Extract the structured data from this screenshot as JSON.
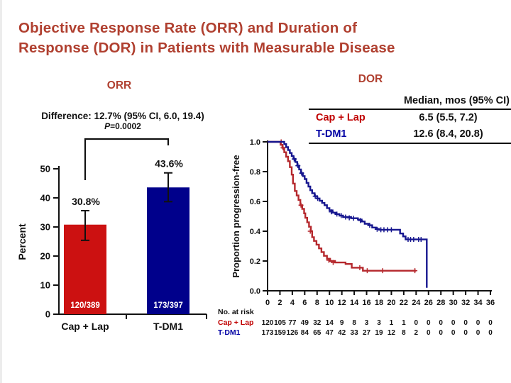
{
  "slide": {
    "title_line1": "Objective Response Rate (ORR) and Duration of",
    "title_line2": "Response (DOR) in Patients with Measurable Disease"
  },
  "colors": {
    "title_red": "#B04030",
    "legend_red": "#C00000",
    "legend_blue": "#0000A4",
    "axis_black": "#111111"
  },
  "orr": {
    "heading": "ORR"
  },
  "dor": {
    "heading": "DOR",
    "legend": {
      "header": "Median, mos (95% CI)",
      "rows": [
        {
          "label": "Cap + Lap",
          "value": "6.5 (5.5, 7.2)"
        },
        {
          "label": "T-DM1",
          "value": "12.6 (8.4, 20.8)"
        }
      ]
    }
  },
  "chart_data": [
    {
      "type": "bar",
      "title": "ORR",
      "categories": [
        "Cap + Lap",
        "T-DM1"
      ],
      "values": [
        30.8,
        43.6
      ],
      "value_labels": [
        "30.8%",
        "43.6%"
      ],
      "bar_inner_labels": [
        "120/389",
        "173/397"
      ],
      "ci": [
        [
          25.4,
          35.6
        ],
        [
          38.7,
          48.6
        ]
      ],
      "colors": [
        "#CC1111",
        "#00008B"
      ],
      "ylabel": "Percent",
      "ylim": [
        0,
        50
      ],
      "yticks": [
        0,
        10,
        20,
        30,
        40,
        50
      ],
      "annotation": {
        "difference": "Difference: 12.7% (95% CI, 6.0, 19.4)",
        "p": "P=0.0002"
      }
    },
    {
      "type": "line",
      "subtype": "kaplan-meier",
      "title": "DOR",
      "ylabel": "Proportion progression-free",
      "ylim": [
        0,
        1
      ],
      "yticks": [
        0.0,
        0.2,
        0.4,
        0.6,
        0.8,
        1.0
      ],
      "xlim": [
        0,
        36
      ],
      "xticks": [
        0,
        2,
        4,
        6,
        8,
        10,
        12,
        14,
        16,
        18,
        20,
        22,
        24,
        26,
        28,
        30,
        32,
        34,
        36
      ],
      "series": [
        {
          "name": "Cap + Lap",
          "color": "#B5282D",
          "points": [
            [
              0,
              1.0
            ],
            [
              2.1,
              0.98
            ],
            [
              2.4,
              0.96
            ],
            [
              2.7,
              0.93
            ],
            [
              3.0,
              0.9
            ],
            [
              3.3,
              0.87
            ],
            [
              3.6,
              0.83
            ],
            [
              3.9,
              0.78
            ],
            [
              4.1,
              0.72
            ],
            [
              4.4,
              0.67
            ],
            [
              4.7,
              0.64
            ],
            [
              5.0,
              0.61
            ],
            [
              5.3,
              0.575
            ],
            [
              5.6,
              0.55
            ],
            [
              5.9,
              0.52
            ],
            [
              6.1,
              0.49
            ],
            [
              6.4,
              0.46
            ],
            [
              6.7,
              0.43
            ],
            [
              7.0,
              0.4
            ],
            [
              7.2,
              0.36
            ],
            [
              7.5,
              0.335
            ],
            [
              7.9,
              0.31
            ],
            [
              8.3,
              0.285
            ],
            [
              8.7,
              0.26
            ],
            [
              9.1,
              0.235
            ],
            [
              9.6,
              0.215
            ],
            [
              10.1,
              0.2
            ],
            [
              10.9,
              0.19
            ],
            [
              12.6,
              0.18
            ],
            [
              13.6,
              0.155
            ],
            [
              15.4,
              0.135
            ],
            [
              24.0,
              0.135
            ]
          ],
          "censors": [
            [
              2.2,
              1.0
            ],
            [
              2.5,
              0.96
            ],
            [
              5.4,
              0.575
            ],
            [
              6.9,
              0.4
            ],
            [
              9.9,
              0.205
            ],
            [
              10.6,
              0.19
            ],
            [
              14.9,
              0.155
            ],
            [
              16.1,
              0.135
            ],
            [
              18.6,
              0.135
            ],
            [
              23.8,
              0.135
            ]
          ]
        },
        {
          "name": "T-DM1",
          "color": "#16168F",
          "points": [
            [
              0,
              1.0
            ],
            [
              2.7,
              0.985
            ],
            [
              3.0,
              0.965
            ],
            [
              3.3,
              0.945
            ],
            [
              3.6,
              0.925
            ],
            [
              3.9,
              0.905
            ],
            [
              4.2,
              0.885
            ],
            [
              4.5,
              0.865
            ],
            [
              4.8,
              0.84
            ],
            [
              5.1,
              0.815
            ],
            [
              5.4,
              0.79
            ],
            [
              5.7,
              0.77
            ],
            [
              6.0,
              0.75
            ],
            [
              6.3,
              0.725
            ],
            [
              6.6,
              0.7
            ],
            [
              6.9,
              0.675
            ],
            [
              7.2,
              0.655
            ],
            [
              7.6,
              0.635
            ],
            [
              8.0,
              0.62
            ],
            [
              8.4,
              0.605
            ],
            [
              8.8,
              0.59
            ],
            [
              9.2,
              0.575
            ],
            [
              9.6,
              0.555
            ],
            [
              10.0,
              0.54
            ],
            [
              10.5,
              0.525
            ],
            [
              11.0,
              0.515
            ],
            [
              11.6,
              0.505
            ],
            [
              12.2,
              0.495
            ],
            [
              13.5,
              0.487
            ],
            [
              14.6,
              0.478
            ],
            [
              15.2,
              0.465
            ],
            [
              15.7,
              0.45
            ],
            [
              16.3,
              0.44
            ],
            [
              16.9,
              0.425
            ],
            [
              17.5,
              0.415
            ],
            [
              18.0,
              0.41
            ],
            [
              21.4,
              0.385
            ],
            [
              21.9,
              0.365
            ],
            [
              22.3,
              0.345
            ],
            [
              25.7,
              0.345
            ],
            [
              25.72,
              0.02
            ]
          ],
          "censors": [
            [
              4.3,
              0.885
            ],
            [
              4.9,
              0.84
            ],
            [
              5.5,
              0.79
            ],
            [
              7.7,
              0.635
            ],
            [
              8.1,
              0.62
            ],
            [
              10.3,
              0.53
            ],
            [
              11.2,
              0.515
            ],
            [
              11.9,
              0.505
            ],
            [
              12.6,
              0.495
            ],
            [
              13.2,
              0.49
            ],
            [
              13.9,
              0.487
            ],
            [
              15.0,
              0.472
            ],
            [
              16.5,
              0.44
            ],
            [
              17.7,
              0.413
            ],
            [
              18.3,
              0.41
            ],
            [
              18.8,
              0.41
            ],
            [
              19.4,
              0.41
            ],
            [
              20.0,
              0.41
            ],
            [
              22.7,
              0.345
            ],
            [
              23.1,
              0.345
            ],
            [
              23.6,
              0.345
            ],
            [
              24.4,
              0.345
            ],
            [
              24.8,
              0.345
            ]
          ]
        }
      ],
      "risk_table": {
        "label": "No. at risk",
        "rows": [
          {
            "name": "Cap + Lap",
            "values": [
              120,
              105,
              77,
              49,
              32,
              14,
              9,
              8,
              3,
              3,
              1,
              1,
              0,
              0,
              0,
              0,
              0,
              0,
              0
            ]
          },
          {
            "name": "T-DM1",
            "values": [
              173,
              159,
              126,
              84,
              65,
              47,
              42,
              33,
              27,
              19,
              12,
              8,
              2,
              0,
              0,
              0,
              0,
              0,
              0
            ]
          }
        ]
      }
    }
  ]
}
